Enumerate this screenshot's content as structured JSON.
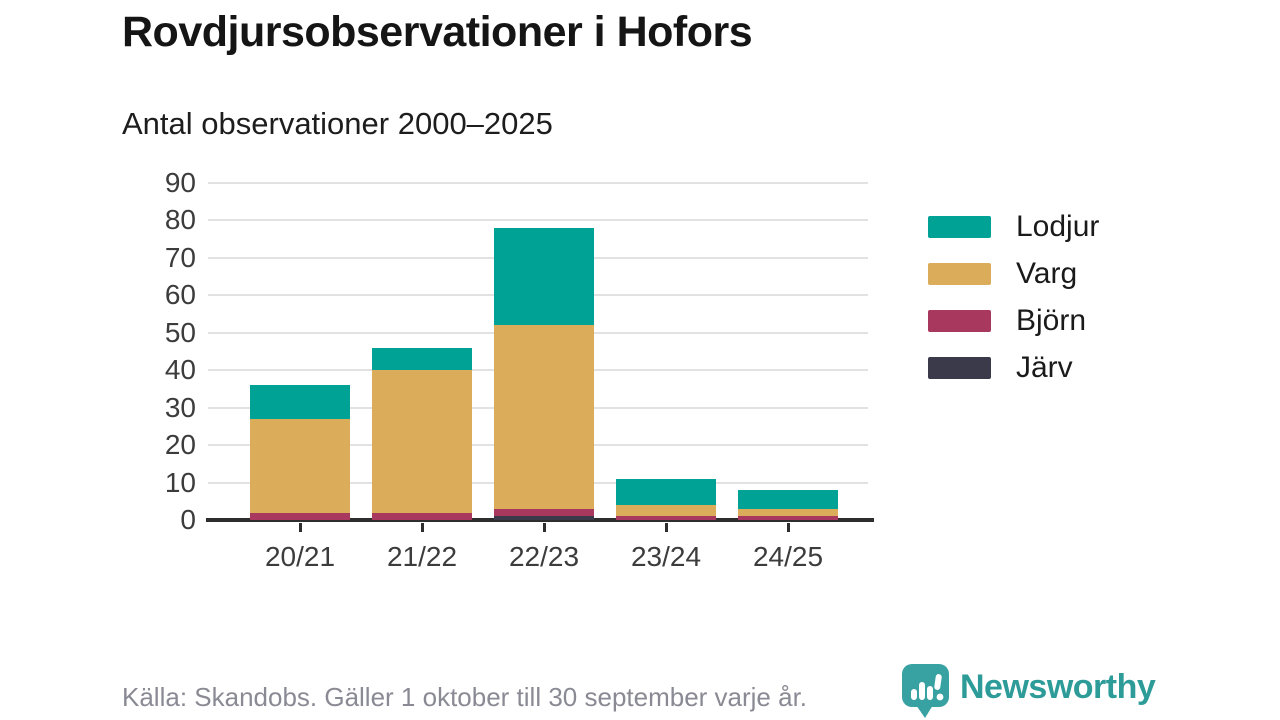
{
  "header": {
    "title": "Rovdjursobservationer i Hofors",
    "subtitle": "Antal observationer 2000–2025"
  },
  "chart_data": {
    "type": "bar",
    "stacked": true,
    "title": "Rovdjursobservationer i Hofors",
    "subtitle": "Antal observationer 2000–2025",
    "categories": [
      "20/21",
      "21/22",
      "22/23",
      "23/24",
      "24/25"
    ],
    "series": [
      {
        "name": "Lodjur",
        "color": "#00a296",
        "values": [
          9,
          6,
          26,
          7,
          5
        ]
      },
      {
        "name": "Varg",
        "color": "#dbad5a",
        "values": [
          25,
          38,
          49,
          3,
          2
        ]
      },
      {
        "name": "Björn",
        "color": "#a8385e",
        "values": [
          2,
          2,
          2,
          1,
          1
        ]
      },
      {
        "name": "Järv",
        "color": "#3b3a4a",
        "values": [
          0,
          0,
          1,
          0,
          0
        ]
      }
    ],
    "stack_order_bottom_to_top": [
      "Järv",
      "Björn",
      "Varg",
      "Lodjur"
    ],
    "totals": [
      36,
      46,
      78,
      11,
      8
    ],
    "xlabel": "",
    "ylabel": "",
    "ylim": [
      0,
      90
    ],
    "yticks": [
      0,
      10,
      20,
      30,
      40,
      50,
      60,
      70,
      80,
      90
    ],
    "grid": true,
    "legend_position": "right"
  },
  "footer": {
    "source": "Källa: Skandobs. Gäller 1 oktober till 30 september varje år.",
    "brand": "Newsworthy"
  },
  "colors": {
    "grid": "#e2e2e2",
    "axis": "#2e2e2e",
    "tick_label": "#3c3c3c",
    "brand_teal": "#2d9c99",
    "background": "#ffffff"
  }
}
